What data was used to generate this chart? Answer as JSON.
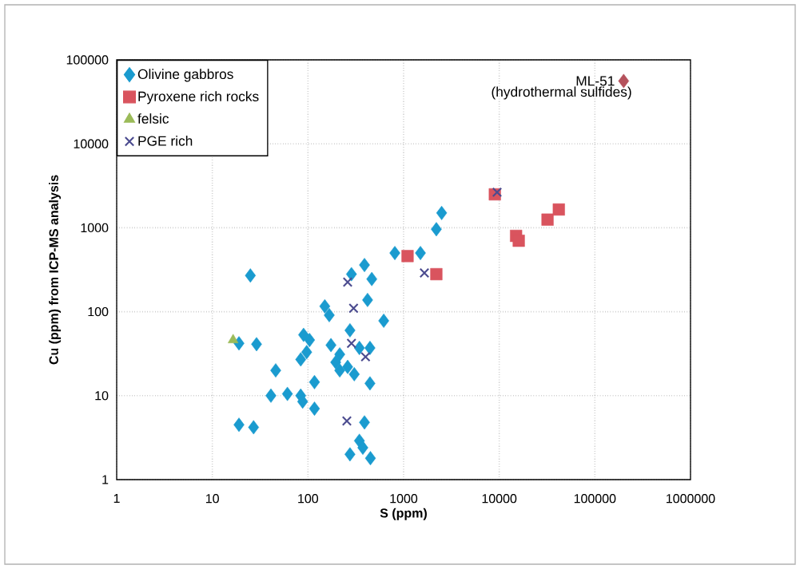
{
  "chart_data": {
    "type": "scatter",
    "xlabel": "S (ppm)",
    "ylabel": "Cu (ppm) from ICP-MS analysis",
    "xlim": [
      1,
      1000000
    ],
    "ylim": [
      1,
      100000
    ],
    "xticks": [
      1,
      10,
      100,
      1000,
      10000,
      100000,
      1000000
    ],
    "yticks": [
      1,
      10,
      100,
      1000,
      10000,
      100000
    ],
    "log": "xy",
    "grid": true,
    "legend": "top left",
    "series": [
      {
        "name": "Olivine gabbros",
        "color": "#1a9bcf",
        "marker": "diamond",
        "x": [
          25,
          19,
          29,
          19,
          27,
          46,
          41,
          61,
          84,
          88,
          84,
          97,
          90,
          104,
          117,
          117,
          150,
          167,
          174,
          215,
          195,
          215,
          260,
          305,
          275,
          285,
          390,
          465,
          420,
          620,
          445,
          345,
          445,
          390,
          345,
          375,
          275,
          450,
          810,
          1500,
          2200,
          2500
        ],
        "values": [
          270,
          42,
          41,
          4.5,
          4.2,
          20,
          10,
          10.5,
          10,
          8.5,
          27,
          33,
          53,
          46,
          14.5,
          7,
          116,
          91,
          40,
          31,
          25,
          20,
          22,
          18,
          60,
          280,
          360,
          245,
          138,
          78,
          37,
          37,
          14,
          4.8,
          2.9,
          2.4,
          2,
          1.8,
          500,
          500,
          960,
          1500
        ]
      },
      {
        "name": "Pyroxene rich rocks",
        "color": "#d9545e",
        "marker": "square",
        "x": [
          1100,
          2200,
          9000,
          15000,
          16000,
          32000,
          42000
        ],
        "values": [
          460,
          280,
          2500,
          800,
          700,
          1250,
          1650
        ]
      },
      {
        "name": "felsic",
        "color": "#9bbb59",
        "marker": "triangle",
        "x": [
          16.5
        ],
        "values": [
          46
        ]
      },
      {
        "name": "PGE rich",
        "color": "#4b4b8f",
        "marker": "cross",
        "x": [
          260,
          300,
          285,
          400,
          255,
          1650,
          9500
        ],
        "values": [
          225,
          110,
          42,
          29,
          5,
          290,
          2650
        ]
      },
      {
        "color": "#b5525c",
        "marker": "diamond",
        "x": [
          200000
        ],
        "values": [
          56000
        ]
      }
    ],
    "annotations": [
      {
        "text": "ML-51",
        "x": 200000,
        "y": 56000
      },
      {
        "text": "(hydrothermal sulfides)",
        "x": 200000,
        "y": 56000
      }
    ]
  }
}
